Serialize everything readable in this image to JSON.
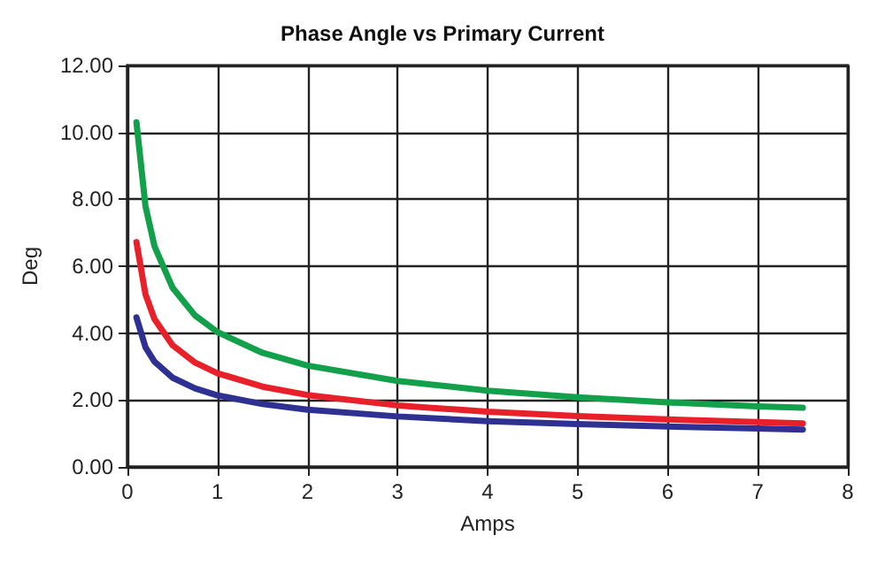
{
  "chart_data": {
    "type": "line",
    "title": "Phase Angle vs Primary Current",
    "xlabel": "Amps",
    "ylabel": "Deg",
    "x": [
      0.1,
      0.2,
      0.3,
      0.5,
      0.75,
      1,
      1.5,
      2,
      3,
      4,
      5,
      6,
      7,
      7.5
    ],
    "series": [
      {
        "color": "#12a04a",
        "values": [
          10.3,
          7.8,
          6.6,
          5.36,
          4.53,
          4.03,
          3.41,
          3.03,
          2.57,
          2.28,
          2.08,
          1.93,
          1.81,
          1.77
        ]
      },
      {
        "color": "#e8202a",
        "values": [
          6.72,
          5.16,
          4.42,
          3.64,
          3.12,
          2.8,
          2.4,
          2.15,
          1.84,
          1.65,
          1.52,
          1.42,
          1.34,
          1.3
        ]
      },
      {
        "color": "#2e3192",
        "values": [
          4.47,
          3.58,
          3.15,
          2.67,
          2.35,
          2.14,
          1.88,
          1.71,
          1.51,
          1.37,
          1.28,
          1.21,
          1.15,
          1.12
        ]
      }
    ],
    "xlim": [
      0,
      8
    ],
    "xticks": [
      0,
      1,
      2,
      3,
      4,
      5,
      6,
      7,
      8
    ],
    "ylim": [
      0,
      12
    ],
    "yticks": [
      {
        "value": 0,
        "label": "0.00"
      },
      {
        "value": 2,
        "label": "2.00"
      },
      {
        "value": 4,
        "label": "4.00"
      },
      {
        "value": 6,
        "label": "6.00"
      },
      {
        "value": 8,
        "label": "8.00"
      },
      {
        "value": 10,
        "label": "10.00"
      },
      {
        "value": 12,
        "label": "12.00"
      }
    ],
    "grid": true,
    "marker": "none",
    "line_style": "solid"
  }
}
